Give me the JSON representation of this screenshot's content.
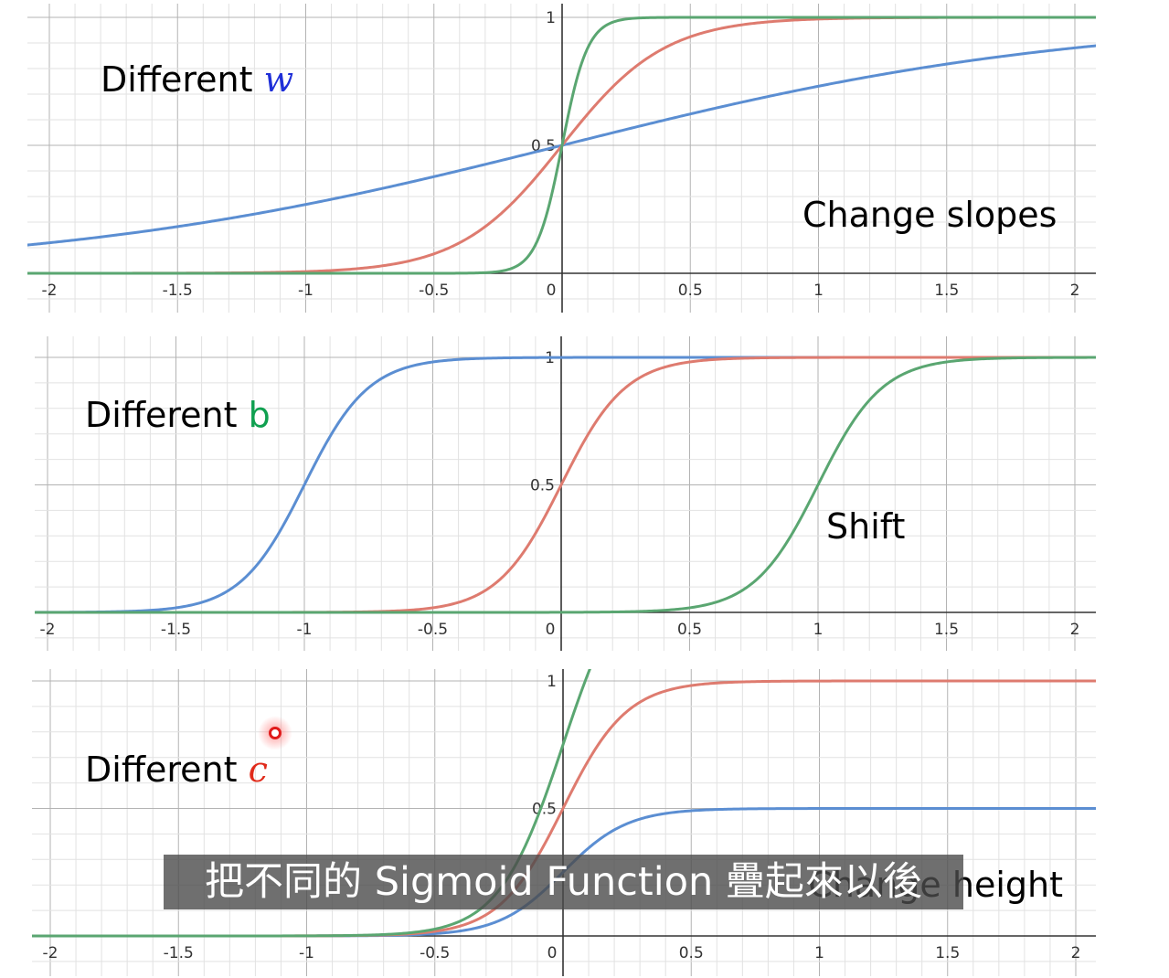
{
  "chart_data": [
    {
      "type": "line",
      "x_range": [
        -2.1,
        2.1
      ],
      "ylim": [
        0,
        1
      ],
      "y_ticks": [
        "1",
        "0.5"
      ],
      "x_ticks": [
        "-2",
        "-1.5",
        "-1",
        "-0.5",
        "0",
        "0.5",
        "1",
        "1.5",
        "2"
      ],
      "grid": true,
      "annotations": {
        "heading_prefix": "Different ",
        "heading_var": "w",
        "note": "Change slopes"
      },
      "series": [
        {
          "function": "1/(1+exp(-(w*x+b)))",
          "w": 1,
          "b": 0,
          "c": 1,
          "color": "#5b8ed2"
        },
        {
          "function": "1/(1+exp(-(w*x+b)))",
          "w": 5,
          "b": 0,
          "c": 1,
          "color": "#de7b6f"
        },
        {
          "function": "1/(1+exp(-(w*x+b)))",
          "w": 20,
          "b": 0,
          "c": 1,
          "color": "#5aa671"
        }
      ]
    },
    {
      "type": "line",
      "x_range": [
        -2.1,
        2.1
      ],
      "ylim": [
        0,
        1
      ],
      "y_ticks": [
        "1",
        "0.5"
      ],
      "x_ticks": [
        "-2",
        "-1.5",
        "-1",
        "-0.5",
        "0",
        "0.5",
        "1",
        "1.5",
        "2"
      ],
      "grid": true,
      "annotations": {
        "heading_prefix": "Different ",
        "heading_var": "b",
        "note": "Shift"
      },
      "series": [
        {
          "function": "1/(1+exp(-(w*x+b)))",
          "w": 8,
          "b": 8,
          "c": 1,
          "color": "#5b8ed2"
        },
        {
          "function": "1/(1+exp(-(w*x+b)))",
          "w": 8,
          "b": 0,
          "c": 1,
          "color": "#de7b6f"
        },
        {
          "function": "1/(1+exp(-(w*x+b)))",
          "w": 8,
          "b": -8,
          "c": 1,
          "color": "#5aa671"
        }
      ]
    },
    {
      "type": "line",
      "x_range": [
        -2.1,
        2.1
      ],
      "ylim": [
        0,
        1
      ],
      "y_ticks": [
        "1",
        "0.5"
      ],
      "x_ticks": [
        "-2",
        "-1.5",
        "-1",
        "-0.5",
        "0",
        "0.5",
        "1",
        "1.5",
        "2"
      ],
      "grid": true,
      "annotations": {
        "heading_prefix": "Different ",
        "heading_var": "c",
        "note": "Change height"
      },
      "series": [
        {
          "function": "c/(1+exp(-(w*x+b)))",
          "w": 8,
          "b": 0,
          "c": 0.5,
          "color": "#5b8ed2"
        },
        {
          "function": "c/(1+exp(-(w*x+b)))",
          "w": 8,
          "b": 0,
          "c": 1,
          "color": "#de7b6f"
        },
        {
          "function": "c/(1+exp(-(w*x+b)))",
          "w": 8,
          "b": 0,
          "c": 1.5,
          "color": "#5aa671"
        }
      ]
    }
  ],
  "colors": {
    "heading_w": "#1f2fd8",
    "heading_b": "#10a050",
    "heading_c": "#e02a1a",
    "note_slopes": "#1f2fd8",
    "note_shift": "#10a050",
    "note_height": "#e02a1a"
  },
  "subtitle": "把不同的 Sigmoid Function 疊起來以後",
  "cursor": {
    "icon": "cursor-highlight-icon"
  }
}
